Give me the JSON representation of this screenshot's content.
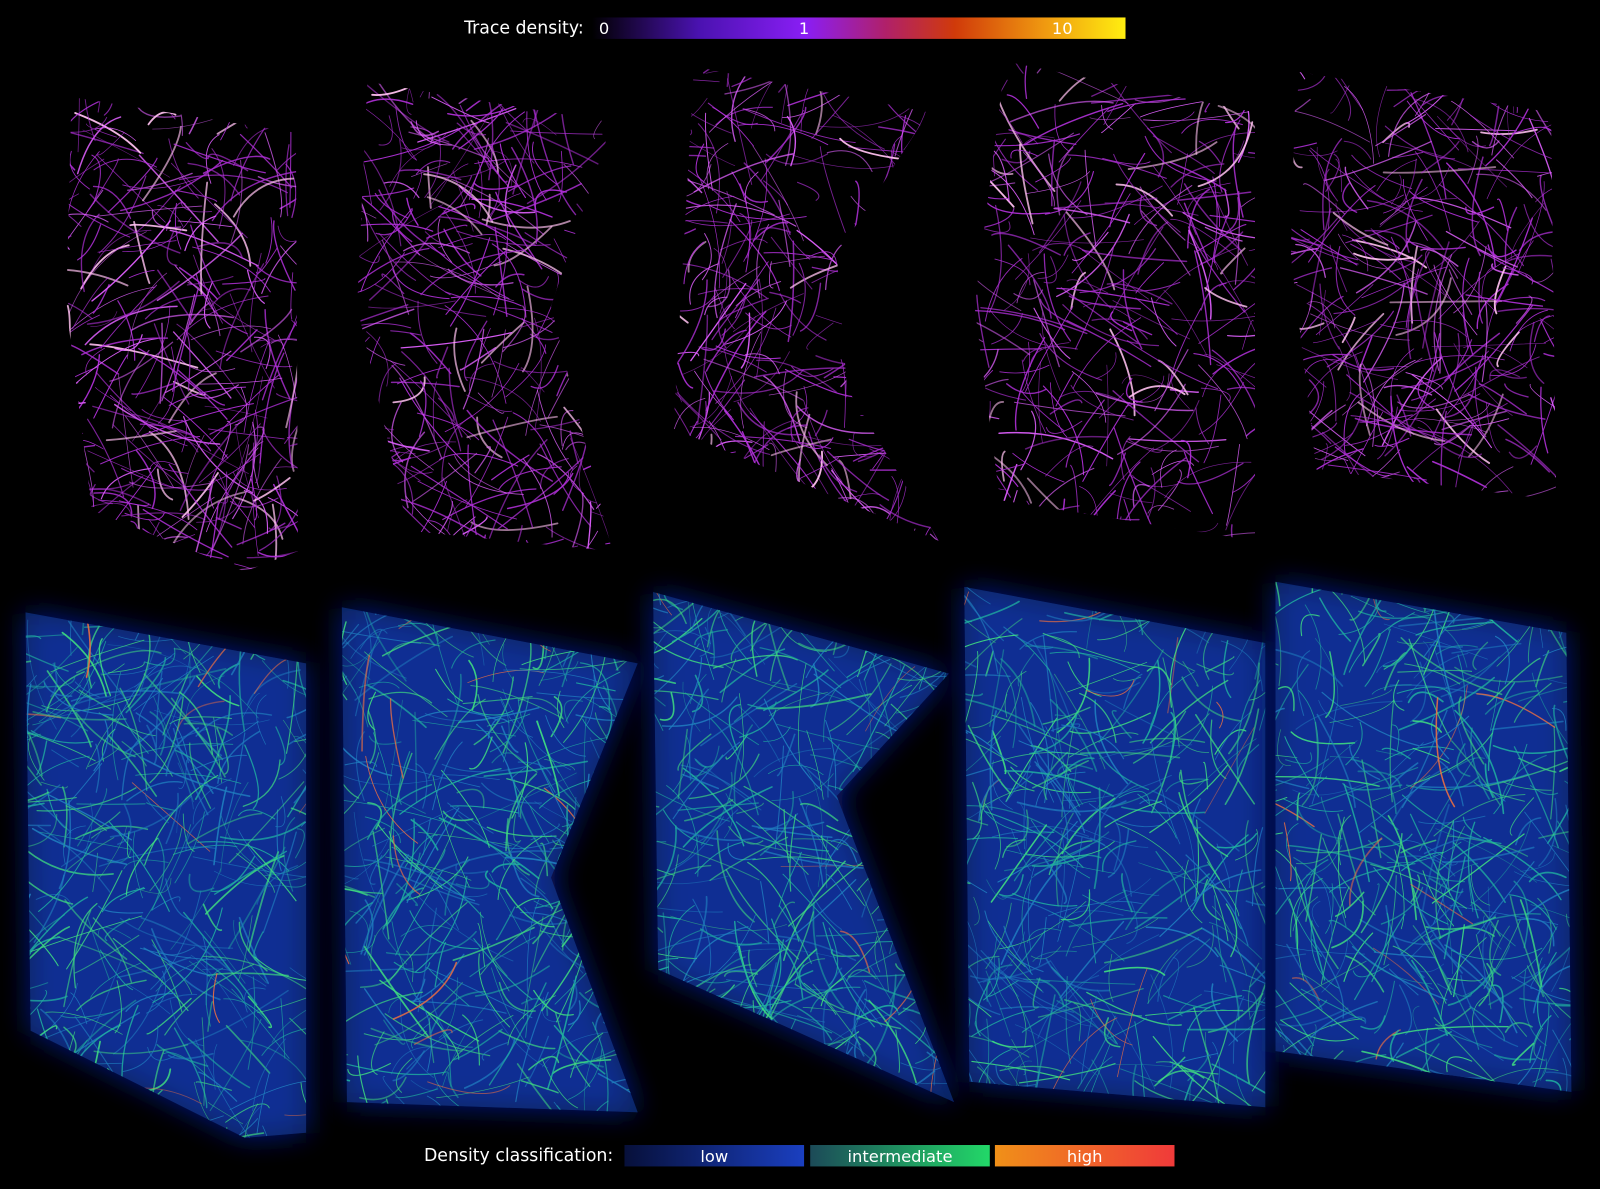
{
  "colorbar": {
    "label": "Trace density:",
    "ticks": [
      0,
      1,
      10
    ]
  },
  "classification": {
    "label": "Density classification:",
    "classes": [
      "low",
      "intermediate",
      "high"
    ]
  }
}
